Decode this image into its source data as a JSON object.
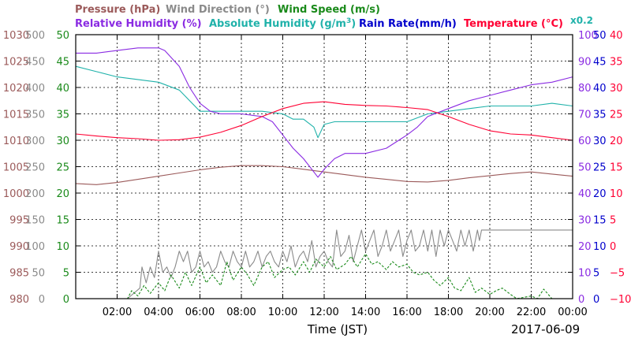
{
  "chart_data": {
    "type": "line",
    "date_label": "2017-06-09",
    "xlabel": "Time (JST)",
    "x_ticks": [
      "02:00",
      "04:00",
      "06:00",
      "08:00",
      "10:00",
      "12:00",
      "14:00",
      "16:00",
      "18:00",
      "20:00",
      "22:00",
      "00:00"
    ],
    "x_range_hours": [
      0,
      24
    ],
    "grid": true,
    "legend": [
      {
        "label": "Pressure (hPa)",
        "color": "#9b5a5a"
      },
      {
        "label": "Wind Direction (°)",
        "color": "#8a8a8a"
      },
      {
        "label": "Wind Speed (m/s)",
        "color": "#1a8a1a"
      },
      {
        "label": "Relative Humidity (%)",
        "color": "#8a2be2"
      },
      {
        "label": "Absolute Humidity (g/m",
        "sup": "3",
        "close": ")",
        "color": "#20b2aa"
      },
      {
        "label": "Rain Rate(mm/h)",
        "color": "#0000cc"
      },
      {
        "label": "Temperature (°C)",
        "color": "#ff0033"
      }
    ],
    "scale_note": "x0.2",
    "axes": [
      {
        "name": "pressure",
        "side": "left",
        "color": "#9b5a5a",
        "ticks": [
          "980",
          "985",
          "990",
          "995",
          "1000",
          "1005",
          "1010",
          "1015",
          "1020",
          "1025",
          "1030"
        ],
        "range": [
          980,
          1030
        ]
      },
      {
        "name": "wind-direction",
        "side": "left",
        "color": "#8a8a8a",
        "ticks": [
          "0",
          "50",
          "100",
          "150",
          "200",
          "250",
          "300",
          "350",
          "400",
          "450",
          "500"
        ],
        "range": [
          0,
          500
        ]
      },
      {
        "name": "wind-speed",
        "side": "left",
        "color": "#1a8a1a",
        "ticks": [
          "0",
          "5",
          "10",
          "15",
          "20",
          "25",
          "30",
          "35",
          "40",
          "45",
          "50"
        ],
        "range": [
          0,
          50
        ]
      },
      {
        "name": "humidity",
        "side": "right",
        "color": "#8a2be2",
        "ticks": [
          "0",
          "10",
          "20",
          "30",
          "40",
          "50",
          "60",
          "70",
          "80",
          "90",
          "100"
        ],
        "range": [
          0,
          100
        ]
      },
      {
        "name": "rain-rate",
        "side": "right",
        "color": "#0000cc",
        "ticks": [
          "0",
          "5",
          "10",
          "15",
          "20",
          "25",
          "30",
          "35",
          "40",
          "45",
          "50"
        ],
        "range": [
          0,
          50
        ]
      },
      {
        "name": "temperature",
        "side": "right",
        "color": "#ff0033",
        "ticks": [
          "−10",
          "−5",
          "0",
          "5",
          "10",
          "15",
          "20",
          "25",
          "30",
          "35",
          "40"
        ],
        "range": [
          -10,
          40
        ]
      }
    ],
    "series": [
      {
        "name": "Pressure (hPa)",
        "axis": "pressure",
        "color": "#9b5a5a",
        "x": [
          0,
          1,
          2,
          3,
          4,
          5,
          6,
          7,
          8,
          9,
          10,
          11,
          12,
          13,
          14,
          15,
          16,
          17,
          18,
          19,
          20,
          21,
          22,
          23,
          24
        ],
        "y": [
          1001.8,
          1001.6,
          1002.0,
          1002.6,
          1003.2,
          1003.8,
          1004.4,
          1004.9,
          1005.2,
          1005.2,
          1005.0,
          1004.5,
          1004.0,
          1003.5,
          1003.0,
          1002.6,
          1002.2,
          1002.1,
          1002.4,
          1002.9,
          1003.3,
          1003.7,
          1004.0,
          1003.6,
          1003.2
        ]
      },
      {
        "name": "Relative Humidity (%)",
        "axis": "humidity",
        "color": "#8a2be2",
        "x": [
          0,
          1,
          2,
          3,
          4,
          4.3,
          5,
          5.5,
          6,
          6.5,
          7,
          8,
          9,
          9.5,
          10,
          10.5,
          11,
          11.5,
          11.7,
          12,
          12.5,
          13,
          13.5,
          14,
          15,
          16,
          16.5,
          17,
          18,
          19,
          20,
          21,
          22,
          23,
          24
        ],
        "y": [
          93,
          93,
          94,
          95,
          95,
          94,
          88,
          80,
          74,
          71,
          70,
          70,
          69,
          67,
          62,
          57,
          53,
          48,
          46,
          49,
          53,
          55,
          55,
          55,
          57,
          62,
          65,
          69,
          72,
          75,
          77,
          79,
          81,
          82,
          84
        ]
      },
      {
        "name": "Absolute Humidity (g/m3)",
        "axis": "humidity",
        "color": "#20b2aa",
        "x": [
          0,
          1,
          2,
          3,
          4,
          5,
          6,
          7,
          8,
          9,
          10,
          10.5,
          11,
          11.5,
          11.7,
          12,
          12.5,
          13,
          14,
          15,
          16,
          17,
          18,
          19,
          20,
          21,
          22,
          23,
          24
        ],
        "y": [
          88,
          86,
          84,
          83,
          82,
          79,
          71,
          71,
          71,
          71,
          70,
          68,
          68,
          65,
          61,
          66,
          67,
          67,
          67,
          67,
          67,
          70,
          71,
          72,
          73,
          73,
          73,
          74,
          73
        ]
      },
      {
        "name": "Temperature (°C)",
        "axis": "temperature",
        "color": "#ff0033",
        "x": [
          0,
          1,
          2,
          3,
          4,
          5,
          6,
          7,
          8,
          9,
          10,
          11,
          12,
          13,
          14,
          15,
          16,
          17,
          18,
          19,
          20,
          21,
          22,
          23,
          24
        ],
        "y": [
          21.2,
          20.8,
          20.5,
          20.3,
          20.0,
          20.1,
          20.6,
          21.5,
          22.8,
          24.5,
          26.0,
          27.0,
          27.3,
          26.8,
          26.6,
          26.5,
          26.2,
          25.8,
          24.5,
          23.0,
          21.8,
          21.2,
          21.0,
          20.5,
          20.0
        ]
      },
      {
        "name": "Wind Direction (°)",
        "axis": "wind-direction",
        "color": "#8a8a8a",
        "x": [
          0,
          2.5,
          3.1,
          3.2,
          3.4,
          3.6,
          3.8,
          4.0,
          4.2,
          4.4,
          4.6,
          4.8,
          5.0,
          5.2,
          5.4,
          5.6,
          5.8,
          6.0,
          6.2,
          6.4,
          6.6,
          6.8,
          7.0,
          7.2,
          7.4,
          7.6,
          7.8,
          8.0,
          8.2,
          8.4,
          8.6,
          8.8,
          9.0,
          9.2,
          9.4,
          9.6,
          9.8,
          10.0,
          10.2,
          10.4,
          10.6,
          10.8,
          11.0,
          11.2,
          11.4,
          11.6,
          11.8,
          12.0,
          12.2,
          12.4,
          12.6,
          12.8,
          13.0,
          13.2,
          13.4,
          13.6,
          13.8,
          14.0,
          14.2,
          14.4,
          14.6,
          14.8,
          15.0,
          15.2,
          15.4,
          15.6,
          15.8,
          16.0,
          16.2,
          16.4,
          16.6,
          16.8,
          17.0,
          17.2,
          17.4,
          17.6,
          17.8,
          18.0,
          18.2,
          18.4,
          18.6,
          18.8,
          19.0,
          19.2,
          19.4,
          19.5,
          19.6,
          24
        ],
        "y": [
          0,
          0,
          20,
          60,
          30,
          60,
          40,
          90,
          50,
          60,
          40,
          60,
          90,
          70,
          90,
          50,
          60,
          90,
          60,
          70,
          50,
          60,
          90,
          70,
          60,
          90,
          70,
          60,
          90,
          60,
          70,
          90,
          60,
          80,
          90,
          70,
          60,
          90,
          70,
          100,
          60,
          80,
          90,
          70,
          110,
          60,
          80,
          90,
          70,
          60,
          130,
          80,
          90,
          120,
          70,
          100,
          130,
          90,
          110,
          130,
          80,
          100,
          130,
          90,
          110,
          130,
          80,
          110,
          130,
          90,
          100,
          130,
          90,
          130,
          80,
          130,
          100,
          130,
          110,
          90,
          130,
          100,
          130,
          90,
          130,
          110,
          130,
          130
        ]
      },
      {
        "name": "Wind Speed (m/s)",
        "axis": "wind-speed",
        "color": "#1a8a1a",
        "x": [
          0,
          2.5,
          2.7,
          3.0,
          3.3,
          3.6,
          4.0,
          4.3,
          4.6,
          5.0,
          5.3,
          5.6,
          6.0,
          6.3,
          6.6,
          7.0,
          7.3,
          7.6,
          8.0,
          8.3,
          8.6,
          9.0,
          9.3,
          9.6,
          10.0,
          10.3,
          10.6,
          11.0,
          11.3,
          11.6,
          12.0,
          12.3,
          12.6,
          13.0,
          13.3,
          13.6,
          14.0,
          14.3,
          14.6,
          15.0,
          15.3,
          15.6,
          16.0,
          16.3,
          16.6,
          17.0,
          17.3,
          17.6,
          18.0,
          18.3,
          18.6,
          19.0,
          19.3,
          19.6,
          20.0,
          20.3,
          20.6,
          21.0,
          21.3,
          22.0,
          22.3,
          22.6,
          23.0,
          24
        ],
        "y": [
          0,
          0,
          1.5,
          0.5,
          2.5,
          1,
          3,
          1.5,
          4.5,
          2,
          5,
          2.5,
          6,
          3,
          4.5,
          2.5,
          7,
          3.5,
          6,
          4.5,
          2.5,
          6,
          7,
          4,
          5.5,
          6,
          4.5,
          7,
          5,
          7.5,
          6,
          8,
          5.5,
          6.5,
          8,
          6,
          8.5,
          6.5,
          7,
          5.5,
          7,
          6,
          6.5,
          5,
          4.5,
          5,
          3.5,
          2.5,
          4,
          2,
          1.5,
          4,
          1.2,
          2,
          0.8,
          1.5,
          2,
          0.8,
          0,
          0.5,
          0,
          1.8,
          0,
          0
        ]
      }
    ]
  }
}
